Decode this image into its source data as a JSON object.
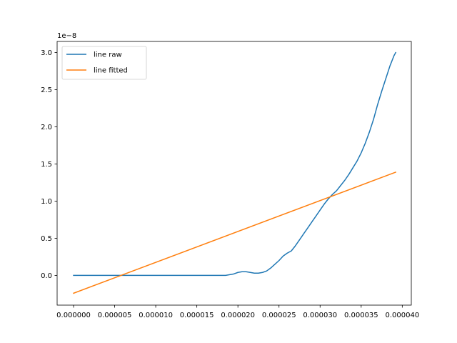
{
  "chart_data": {
    "type": "line",
    "title": "",
    "xlabel": "",
    "ylabel": "",
    "y_offset_label": "1e−8",
    "xlim": [
      -2e-06,
      4.11e-05
    ],
    "ylim": [
      -0.4,
      3.15
    ],
    "x_ticks": [
      0.0,
      5e-06,
      1e-05,
      1.5e-05,
      2e-05,
      2.5e-05,
      3e-05,
      3.5e-05,
      4e-05
    ],
    "x_tick_labels": [
      "0.000000",
      "0.000005",
      "0.000010",
      "0.000015",
      "0.000020",
      "0.000025",
      "0.000030",
      "0.000035",
      "0.000040"
    ],
    "y_ticks": [
      0.0,
      0.5,
      1.0,
      1.5,
      2.0,
      2.5,
      3.0
    ],
    "y_tick_labels": [
      "0.0",
      "0.5",
      "1.0",
      "1.5",
      "2.0",
      "2.5",
      "3.0"
    ],
    "grid": false,
    "legend": {
      "position": "upper-left",
      "entries": [
        "line raw",
        "line fitted"
      ]
    },
    "series": [
      {
        "name": "line raw",
        "color": "#1f77b4",
        "x": [
          0.0,
          5e-07,
          1e-06,
          1.5e-06,
          2e-06,
          2.5e-06,
          3e-06,
          3.5e-06,
          4e-06,
          4.5e-06,
          5e-06,
          5.5e-06,
          6e-06,
          6.5e-06,
          7e-06,
          7.5e-06,
          8e-06,
          8.5e-06,
          9e-06,
          9.5e-06,
          1e-05,
          1.05e-05,
          1.1e-05,
          1.15e-05,
          1.2e-05,
          1.25e-05,
          1.3e-05,
          1.35e-05,
          1.4e-05,
          1.45e-05,
          1.5e-05,
          1.55e-05,
          1.6e-05,
          1.65e-05,
          1.7e-05,
          1.75e-05,
          1.8e-05,
          1.85e-05,
          1.9e-05,
          1.95e-05,
          2e-05,
          2.05e-05,
          2.1e-05,
          2.15e-05,
          2.2e-05,
          2.25e-05,
          2.3e-05,
          2.35e-05,
          2.4e-05,
          2.45e-05,
          2.5e-05,
          2.55e-05,
          2.6e-05,
          2.65e-05,
          2.7e-05,
          2.75e-05,
          2.8e-05,
          2.85e-05,
          2.9e-05,
          2.95e-05,
          3e-05,
          3.05e-05,
          3.1e-05,
          3.15e-05,
          3.2e-05,
          3.25e-05,
          3.3e-05,
          3.35e-05,
          3.4e-05,
          3.45e-05,
          3.5e-05,
          3.55e-05,
          3.6e-05,
          3.65e-05,
          3.7e-05,
          3.75e-05,
          3.8e-05,
          3.85e-05,
          3.9e-05,
          3.92e-05
        ],
        "y": [
          0.0,
          0.0,
          0.0,
          0.0,
          0.0,
          0.0,
          0.0,
          0.0,
          0.0,
          0.0,
          0.0,
          0.0,
          0.0,
          0.0,
          0.0,
          0.0,
          0.0,
          0.0,
          0.0,
          0.0,
          0.0,
          0.0,
          0.0,
          0.0,
          0.0,
          0.0,
          0.0,
          0.0,
          0.0,
          0.0,
          0.0,
          0.0,
          0.0,
          0.0,
          0.0,
          0.0,
          0.0,
          0.0,
          0.01,
          0.02,
          0.04,
          0.05,
          0.05,
          0.04,
          0.03,
          0.03,
          0.04,
          0.06,
          0.1,
          0.15,
          0.2,
          0.26,
          0.3,
          0.33,
          0.4,
          0.48,
          0.56,
          0.64,
          0.72,
          0.8,
          0.88,
          0.96,
          1.03,
          1.09,
          1.14,
          1.21,
          1.28,
          1.36,
          1.45,
          1.54,
          1.65,
          1.78,
          1.93,
          2.1,
          2.3,
          2.48,
          2.65,
          2.82,
          2.96,
          3.0
        ]
      },
      {
        "name": "line fitted",
        "color": "#ff7f0e",
        "x": [
          0.0,
          3.92e-05
        ],
        "y": [
          -0.24,
          1.39
        ]
      }
    ]
  }
}
